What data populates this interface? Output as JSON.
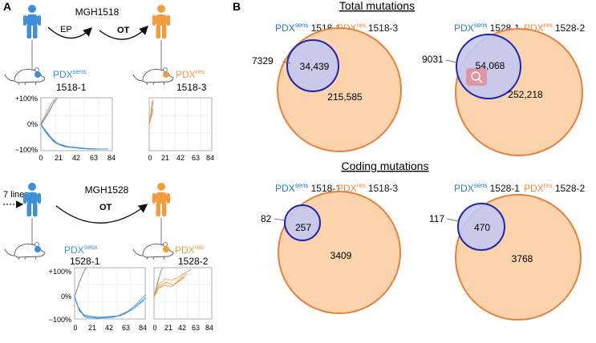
{
  "panel_a": {
    "label": "A",
    "top": {
      "patient": "MGH1518",
      "ep": "EP",
      "ot": "OT",
      "sens_prefix": "PDX",
      "sens_sup": "sens",
      "sens_id": "1518-1",
      "res_prefix": "PDX",
      "res_sup": "res",
      "res_id": "1518-3",
      "y_ticks": [
        "+100%",
        "0%",
        "−100%"
      ],
      "x_ticks": [
        "0",
        "21",
        "42",
        "63",
        "84"
      ]
    },
    "bottom": {
      "lines": "7 lines",
      "patient": "MGH1528",
      "ot": "OT",
      "sens_prefix": "PDX",
      "sens_sup": "sens",
      "sens_id": "1528-1",
      "res_prefix": "PDX",
      "res_sup": "res",
      "res_id": "1528-2",
      "y_ticks": [
        "+100%",
        "0%",
        "−100%"
      ],
      "x_ticks": [
        "0",
        "21",
        "42",
        "63",
        "84"
      ]
    }
  },
  "panel_b": {
    "label": "B",
    "total_title": "Total mutations",
    "coding_title": "Coding mutations",
    "venns": [
      {
        "sens_prefix": "PDX",
        "sens_sup": "sens",
        "sens_id": "1518-1",
        "res_prefix": "PDX",
        "res_sup": "res",
        "res_id": "1518-3",
        "only_sens": "7329",
        "shared": "34,439",
        "only_res": "215,585"
      },
      {
        "sens_prefix": "PDX",
        "sens_sup": "sens",
        "sens_id": "1528-1",
        "res_prefix": "PDX",
        "res_sup": "res",
        "res_id": "1528-2",
        "only_sens": "9031",
        "shared": "54,068",
        "only_res": "252,218"
      },
      {
        "sens_prefix": "PDX",
        "sens_sup": "sens",
        "sens_id": "1518-1",
        "res_prefix": "PDX",
        "res_sup": "res",
        "res_id": "1518-3",
        "only_sens": "82",
        "shared": "257",
        "only_res": "3409"
      },
      {
        "sens_prefix": "PDX",
        "sens_sup": "sens",
        "sens_id": "1528-1",
        "res_prefix": "PDX",
        "res_sup": "res",
        "res_id": "1528-2",
        "only_sens": "117",
        "shared": "470",
        "only_res": "3768"
      }
    ]
  },
  "colors": {
    "sens": "#3f8fd8",
    "res": "#f39c3d",
    "venn_res_fill": "#fbd3ad",
    "venn_res_stroke": "#e8803a",
    "venn_sens_fill": "#c3c9f0",
    "venn_sens_stroke": "#1f23b5",
    "gray_traces": "#888888"
  }
}
